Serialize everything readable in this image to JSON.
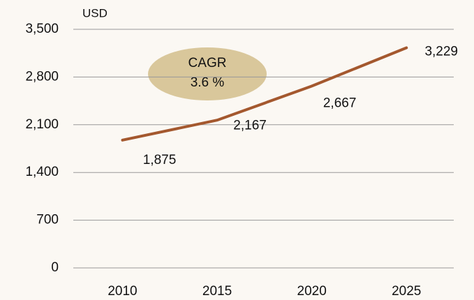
{
  "chart_data": {
    "type": "line",
    "y_axis_label": "USD",
    "annotation": [
      "CAGR",
      "3.6 %"
    ],
    "x": [
      2010,
      2015,
      2020,
      2025
    ],
    "xlim": [
      2007.4,
      2027.5
    ],
    "xticks": [
      2010,
      2015,
      2020,
      2025
    ],
    "series": [
      {
        "name": "USD",
        "color": "#a4582e",
        "values": [
          1875,
          2167,
          2667,
          3229
        ],
        "value_labels": [
          "1,875",
          "2,167",
          "2,667",
          "3,229"
        ]
      }
    ],
    "ylim": [
      0,
      3500
    ],
    "yticks": [
      0,
      700,
      {
        "value": 1400,
        "label": "1,400"
      },
      {
        "value": 2100,
        "label": "2,100"
      },
      {
        "value": 2800,
        "label": "2,800"
      },
      {
        "value": 3500,
        "label": "3,500"
      }
    ],
    "grid": true
  }
}
